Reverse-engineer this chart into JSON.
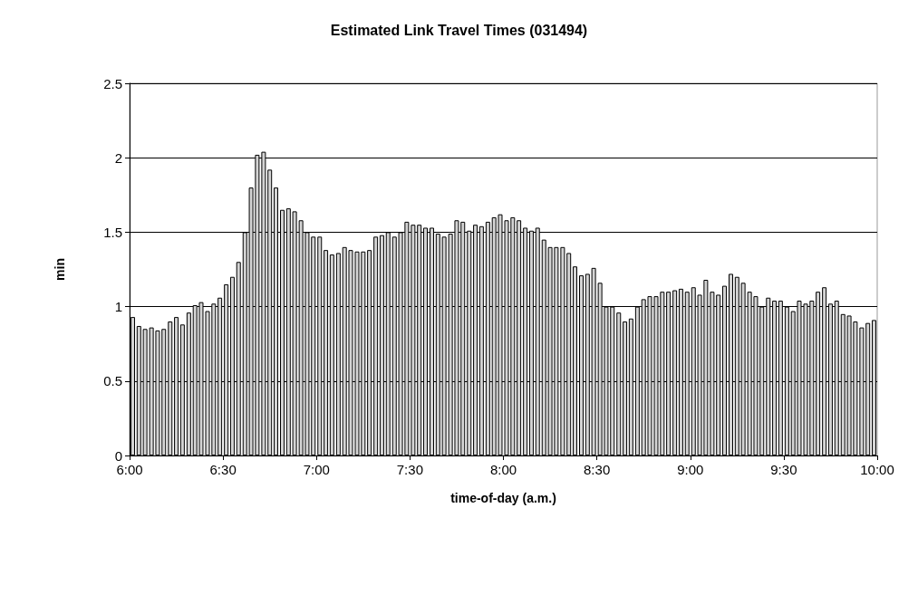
{
  "chart_data": {
    "type": "bar",
    "title": "Estimated Link Travel Times (031494)",
    "xlabel": "time-of-day (a.m.)",
    "ylabel": "min",
    "x": [
      6.017,
      6.05,
      6.083,
      6.117,
      6.15,
      6.183,
      6.217,
      6.25,
      6.283,
      6.317,
      6.35,
      6.383,
      6.417,
      6.45,
      6.483,
      6.517,
      6.55,
      6.583,
      6.617,
      6.65,
      6.683,
      6.717,
      6.75,
      6.783,
      6.817,
      6.85,
      6.883,
      6.917,
      6.95,
      6.983,
      7.017,
      7.05,
      7.083,
      7.117,
      7.15,
      7.183,
      7.217,
      7.25,
      7.283,
      7.317,
      7.35,
      7.383,
      7.417,
      7.45,
      7.483,
      7.517,
      7.55,
      7.583,
      7.617,
      7.65,
      7.683,
      7.717,
      7.75,
      7.783,
      7.817,
      7.85,
      7.883,
      7.917,
      7.95,
      7.983,
      8.017,
      8.05,
      8.083,
      8.117,
      8.15,
      8.183,
      8.217,
      8.25,
      8.283,
      8.317,
      8.35,
      8.383,
      8.417,
      8.45,
      8.483,
      8.517,
      8.55,
      8.583,
      8.617,
      8.65,
      8.683,
      8.717,
      8.75,
      8.783,
      8.817,
      8.85,
      8.883,
      8.917,
      8.95,
      8.983,
      9.017,
      9.05,
      9.083,
      9.117,
      9.15,
      9.183,
      9.217,
      9.25,
      9.283,
      9.317,
      9.35,
      9.383,
      9.417,
      9.45,
      9.483,
      9.517,
      9.55,
      9.583,
      9.617,
      9.65,
      9.683,
      9.717,
      9.75,
      9.783,
      9.817,
      9.85,
      9.883,
      9.917,
      9.95,
      9.983
    ],
    "values": [
      0.93,
      0.87,
      0.85,
      0.86,
      0.84,
      0.85,
      0.9,
      0.93,
      0.88,
      0.96,
      1.01,
      1.03,
      0.97,
      1.02,
      1.06,
      1.15,
      1.2,
      1.3,
      1.5,
      1.8,
      2.02,
      2.04,
      1.92,
      1.8,
      1.65,
      1.66,
      1.64,
      1.58,
      1.5,
      1.47,
      1.47,
      1.38,
      1.35,
      1.36,
      1.4,
      1.38,
      1.37,
      1.37,
      1.38,
      1.47,
      1.48,
      1.5,
      1.47,
      1.5,
      1.57,
      1.55,
      1.55,
      1.53,
      1.53,
      1.49,
      1.47,
      1.49,
      1.58,
      1.57,
      1.51,
      1.55,
      1.54,
      1.57,
      1.6,
      1.62,
      1.58,
      1.6,
      1.58,
      1.53,
      1.51,
      1.53,
      1.45,
      1.4,
      1.4,
      1.4,
      1.36,
      1.27,
      1.21,
      1.22,
      1.26,
      1.16,
      1.0,
      1.0,
      0.96,
      0.9,
      0.92,
      1.0,
      1.05,
      1.07,
      1.07,
      1.1,
      1.1,
      1.11,
      1.12,
      1.1,
      1.13,
      1.08,
      1.18,
      1.1,
      1.08,
      1.14,
      1.22,
      1.2,
      1.16,
      1.1,
      1.07,
      1.0,
      1.06,
      1.04,
      1.04,
      1.0,
      0.97,
      1.04,
      1.02,
      1.04,
      1.1,
      1.13,
      1.02,
      1.04,
      0.95,
      0.94,
      0.9,
      0.86,
      0.89,
      0.91
    ],
    "color": "#d4d4d4",
    "xlim": [
      6,
      10
    ],
    "xticks": [
      {
        "value": 6,
        "label": "6:00"
      },
      {
        "value": 6.5,
        "label": "6:30"
      },
      {
        "value": 7,
        "label": "7:00"
      },
      {
        "value": 7.5,
        "label": "7:30"
      },
      {
        "value": 8,
        "label": "8:00"
      },
      {
        "value": 8.5,
        "label": "8:30"
      },
      {
        "value": 9,
        "label": "9:00"
      },
      {
        "value": 9.5,
        "label": "9:30"
      },
      {
        "value": 10,
        "label": "10:00"
      }
    ],
    "ylim": [
      0,
      2.5
    ],
    "yticks": [
      0,
      0.5,
      1,
      1.5,
      2,
      2.5
    ],
    "grid": "y"
  }
}
